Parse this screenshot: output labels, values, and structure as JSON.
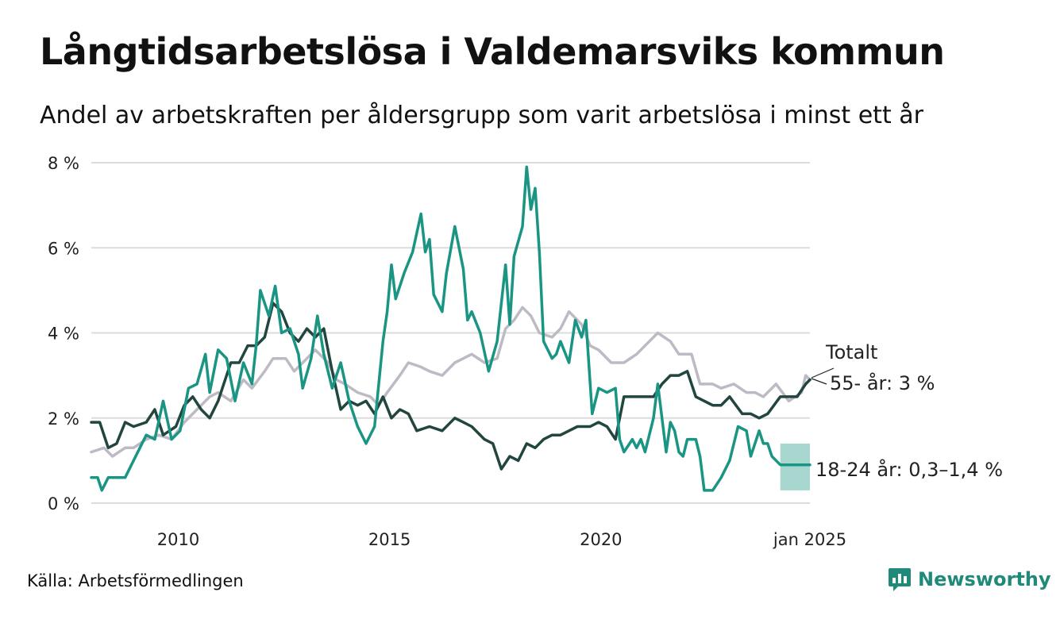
{
  "chart_data": {
    "type": "line",
    "title": "Långtidsarbetslösa i Valdemarsviks kommun",
    "subtitle": "Andel av arbetskraften per åldersgrupp som varit arbetslösa i minst ett år",
    "source": "Källa: Arbetsförmedlingen",
    "brand": "Newsworthy",
    "x_range": [
      2008.0,
      2025.0
    ],
    "ylim": [
      0,
      8
    ],
    "y_ticks": [
      {
        "value": 0,
        "label": "0 %"
      },
      {
        "value": 2,
        "label": "2 %"
      },
      {
        "value": 4,
        "label": "4 %"
      },
      {
        "value": 6,
        "label": "6 %"
      },
      {
        "value": 8,
        "label": "8 %"
      }
    ],
    "x_ticks": [
      {
        "value": 2010,
        "label": "2010"
      },
      {
        "value": 2015,
        "label": "2015"
      },
      {
        "value": 2020,
        "label": "2020"
      },
      {
        "value": 2025,
        "label": "jan 2025"
      }
    ],
    "grid": true,
    "series": [
      {
        "name": "Totalt",
        "color": "#bdbac6",
        "points": [
          [
            2008.0,
            1.2
          ],
          [
            2008.3,
            1.3
          ],
          [
            2008.5,
            1.1
          ],
          [
            2008.8,
            1.3
          ],
          [
            2009.0,
            1.3
          ],
          [
            2009.3,
            1.5
          ],
          [
            2009.6,
            1.6
          ],
          [
            2009.9,
            1.5
          ],
          [
            2010.2,
            1.9
          ],
          [
            2010.5,
            2.2
          ],
          [
            2010.8,
            2.5
          ],
          [
            2011.0,
            2.6
          ],
          [
            2011.3,
            2.4
          ],
          [
            2011.6,
            2.9
          ],
          [
            2011.8,
            2.7
          ],
          [
            2012.1,
            3.1
          ],
          [
            2012.3,
            3.4
          ],
          [
            2012.6,
            3.4
          ],
          [
            2012.8,
            3.1
          ],
          [
            2013.1,
            3.4
          ],
          [
            2013.3,
            3.6
          ],
          [
            2013.6,
            3.3
          ],
          [
            2013.8,
            2.9
          ],
          [
            2014.0,
            2.8
          ],
          [
            2014.3,
            2.6
          ],
          [
            2014.6,
            2.5
          ],
          [
            2014.8,
            2.3
          ],
          [
            2015.0,
            2.6
          ],
          [
            2015.3,
            3.0
          ],
          [
            2015.5,
            3.3
          ],
          [
            2015.8,
            3.2
          ],
          [
            2016.0,
            3.1
          ],
          [
            2016.3,
            3.0
          ],
          [
            2016.6,
            3.3
          ],
          [
            2016.8,
            3.4
          ],
          [
            2017.0,
            3.5
          ],
          [
            2017.3,
            3.3
          ],
          [
            2017.6,
            3.4
          ],
          [
            2017.8,
            4.1
          ],
          [
            2018.0,
            4.3
          ],
          [
            2018.2,
            4.6
          ],
          [
            2018.4,
            4.4
          ],
          [
            2018.6,
            4.0
          ],
          [
            2018.9,
            3.9
          ],
          [
            2019.1,
            4.1
          ],
          [
            2019.3,
            4.5
          ],
          [
            2019.6,
            4.2
          ],
          [
            2019.8,
            3.7
          ],
          [
            2020.0,
            3.6
          ],
          [
            2020.3,
            3.3
          ],
          [
            2020.6,
            3.3
          ],
          [
            2020.9,
            3.5
          ],
          [
            2021.2,
            3.8
          ],
          [
            2021.4,
            4.0
          ],
          [
            2021.7,
            3.8
          ],
          [
            2021.9,
            3.5
          ],
          [
            2022.2,
            3.5
          ],
          [
            2022.4,
            2.8
          ],
          [
            2022.7,
            2.8
          ],
          [
            2022.9,
            2.7
          ],
          [
            2023.2,
            2.8
          ],
          [
            2023.5,
            2.6
          ],
          [
            2023.7,
            2.6
          ],
          [
            2023.9,
            2.5
          ],
          [
            2024.2,
            2.8
          ],
          [
            2024.5,
            2.4
          ],
          [
            2024.8,
            2.6
          ],
          [
            2024.9,
            3.0
          ],
          [
            2025.0,
            2.9
          ]
        ]
      },
      {
        "name": "55- år",
        "color": "#22463f",
        "points": [
          [
            2008.0,
            1.9
          ],
          [
            2008.2,
            1.9
          ],
          [
            2008.4,
            1.3
          ],
          [
            2008.6,
            1.4
          ],
          [
            2008.8,
            1.9
          ],
          [
            2009.0,
            1.8
          ],
          [
            2009.3,
            1.9
          ],
          [
            2009.5,
            2.2
          ],
          [
            2009.7,
            1.6
          ],
          [
            2010.0,
            1.8
          ],
          [
            2010.2,
            2.3
          ],
          [
            2010.4,
            2.5
          ],
          [
            2010.6,
            2.2
          ],
          [
            2010.8,
            2.0
          ],
          [
            2011.0,
            2.4
          ],
          [
            2011.3,
            3.3
          ],
          [
            2011.5,
            3.3
          ],
          [
            2011.7,
            3.7
          ],
          [
            2011.9,
            3.7
          ],
          [
            2012.1,
            3.9
          ],
          [
            2012.3,
            4.7
          ],
          [
            2012.5,
            4.5
          ],
          [
            2012.7,
            4.0
          ],
          [
            2012.9,
            3.8
          ],
          [
            2013.1,
            4.1
          ],
          [
            2013.3,
            3.9
          ],
          [
            2013.5,
            4.1
          ],
          [
            2013.7,
            3.1
          ],
          [
            2013.9,
            2.2
          ],
          [
            2014.1,
            2.4
          ],
          [
            2014.3,
            2.3
          ],
          [
            2014.5,
            2.4
          ],
          [
            2014.7,
            2.1
          ],
          [
            2014.9,
            2.5
          ],
          [
            2015.1,
            2.0
          ],
          [
            2015.3,
            2.2
          ],
          [
            2015.5,
            2.1
          ],
          [
            2015.7,
            1.7
          ],
          [
            2016.0,
            1.8
          ],
          [
            2016.3,
            1.7
          ],
          [
            2016.6,
            2.0
          ],
          [
            2016.8,
            1.9
          ],
          [
            2017.0,
            1.8
          ],
          [
            2017.3,
            1.5
          ],
          [
            2017.5,
            1.4
          ],
          [
            2017.7,
            0.8
          ],
          [
            2017.9,
            1.1
          ],
          [
            2018.1,
            1.0
          ],
          [
            2018.3,
            1.4
          ],
          [
            2018.5,
            1.3
          ],
          [
            2018.7,
            1.5
          ],
          [
            2018.9,
            1.6
          ],
          [
            2019.1,
            1.6
          ],
          [
            2019.3,
            1.7
          ],
          [
            2019.5,
            1.8
          ],
          [
            2019.8,
            1.8
          ],
          [
            2020.0,
            1.9
          ],
          [
            2020.2,
            1.8
          ],
          [
            2020.4,
            1.5
          ],
          [
            2020.6,
            2.5
          ],
          [
            2020.8,
            2.5
          ],
          [
            2021.0,
            2.5
          ],
          [
            2021.3,
            2.5
          ],
          [
            2021.5,
            2.8
          ],
          [
            2021.7,
            3.0
          ],
          [
            2021.9,
            3.0
          ],
          [
            2022.1,
            3.1
          ],
          [
            2022.3,
            2.5
          ],
          [
            2022.5,
            2.4
          ],
          [
            2022.7,
            2.3
          ],
          [
            2022.9,
            2.3
          ],
          [
            2023.1,
            2.5
          ],
          [
            2023.4,
            2.1
          ],
          [
            2023.6,
            2.1
          ],
          [
            2023.8,
            2.0
          ],
          [
            2024.0,
            2.1
          ],
          [
            2024.3,
            2.5
          ],
          [
            2024.5,
            2.5
          ],
          [
            2024.7,
            2.5
          ],
          [
            2024.9,
            2.8
          ],
          [
            2025.0,
            2.9
          ]
        ]
      },
      {
        "name": "18-24 år",
        "color": "#1a9583",
        "points": [
          [
            2008.0,
            0.6
          ],
          [
            2008.15,
            0.6
          ],
          [
            2008.25,
            0.3
          ],
          [
            2008.4,
            0.6
          ],
          [
            2008.6,
            0.6
          ],
          [
            2008.8,
            0.6
          ],
          [
            2009.0,
            1.0
          ],
          [
            2009.3,
            1.6
          ],
          [
            2009.5,
            1.5
          ],
          [
            2009.7,
            2.4
          ],
          [
            2009.9,
            1.5
          ],
          [
            2010.1,
            1.7
          ],
          [
            2010.3,
            2.7
          ],
          [
            2010.5,
            2.8
          ],
          [
            2010.7,
            3.5
          ],
          [
            2010.8,
            2.6
          ],
          [
            2011.0,
            3.6
          ],
          [
            2011.2,
            3.4
          ],
          [
            2011.4,
            2.4
          ],
          [
            2011.6,
            3.3
          ],
          [
            2011.8,
            2.8
          ],
          [
            2011.9,
            3.7
          ],
          [
            2012.0,
            5.0
          ],
          [
            2012.2,
            4.4
          ],
          [
            2012.35,
            5.1
          ],
          [
            2012.5,
            4.0
          ],
          [
            2012.7,
            4.1
          ],
          [
            2012.9,
            3.5
          ],
          [
            2013.0,
            2.7
          ],
          [
            2013.2,
            3.4
          ],
          [
            2013.35,
            4.4
          ],
          [
            2013.5,
            3.5
          ],
          [
            2013.7,
            2.7
          ],
          [
            2013.9,
            3.3
          ],
          [
            2014.1,
            2.4
          ],
          [
            2014.3,
            1.8
          ],
          [
            2014.5,
            1.4
          ],
          [
            2014.7,
            1.8
          ],
          [
            2014.9,
            3.8
          ],
          [
            2015.0,
            4.5
          ],
          [
            2015.1,
            5.6
          ],
          [
            2015.2,
            4.8
          ],
          [
            2015.4,
            5.4
          ],
          [
            2015.6,
            5.9
          ],
          [
            2015.8,
            6.8
          ],
          [
            2015.9,
            5.9
          ],
          [
            2016.0,
            6.2
          ],
          [
            2016.1,
            4.9
          ],
          [
            2016.3,
            4.5
          ],
          [
            2016.4,
            5.4
          ],
          [
            2016.6,
            6.5
          ],
          [
            2016.8,
            5.5
          ],
          [
            2016.9,
            4.3
          ],
          [
            2017.0,
            4.5
          ],
          [
            2017.2,
            4.0
          ],
          [
            2017.4,
            3.1
          ],
          [
            2017.6,
            3.8
          ],
          [
            2017.8,
            5.6
          ],
          [
            2017.9,
            4.2
          ],
          [
            2018.0,
            5.8
          ],
          [
            2018.2,
            6.5
          ],
          [
            2018.3,
            7.9
          ],
          [
            2018.4,
            6.9
          ],
          [
            2018.5,
            7.4
          ],
          [
            2018.6,
            5.9
          ],
          [
            2018.7,
            3.8
          ],
          [
            2018.9,
            3.4
          ],
          [
            2019.0,
            3.5
          ],
          [
            2019.1,
            3.8
          ],
          [
            2019.3,
            3.3
          ],
          [
            2019.45,
            4.3
          ],
          [
            2019.6,
            3.9
          ],
          [
            2019.7,
            4.3
          ],
          [
            2019.85,
            2.1
          ],
          [
            2020.0,
            2.7
          ],
          [
            2020.2,
            2.6
          ],
          [
            2020.4,
            2.7
          ],
          [
            2020.5,
            1.5
          ],
          [
            2020.6,
            1.2
          ],
          [
            2020.8,
            1.5
          ],
          [
            2020.9,
            1.3
          ],
          [
            2021.0,
            1.5
          ],
          [
            2021.1,
            1.2
          ],
          [
            2021.3,
            2.0
          ],
          [
            2021.4,
            2.8
          ],
          [
            2021.5,
            2.0
          ],
          [
            2021.6,
            1.2
          ],
          [
            2021.7,
            1.9
          ],
          [
            2021.8,
            1.7
          ],
          [
            2021.9,
            1.2
          ],
          [
            2022.0,
            1.1
          ],
          [
            2022.1,
            1.5
          ],
          [
            2022.3,
            1.5
          ],
          [
            2022.4,
            1.1
          ],
          [
            2022.5,
            0.3
          ],
          [
            2022.7,
            0.3
          ],
          [
            2022.9,
            0.6
          ],
          [
            2023.1,
            1.0
          ],
          [
            2023.3,
            1.8
          ],
          [
            2023.5,
            1.7
          ],
          [
            2023.6,
            1.1
          ],
          [
            2023.8,
            1.7
          ],
          [
            2023.9,
            1.4
          ],
          [
            2024.0,
            1.4
          ],
          [
            2024.1,
            1.1
          ],
          [
            2024.3,
            0.9
          ],
          [
            2024.6,
            0.9
          ],
          [
            2025.0,
            0.9
          ]
        ],
        "interval": {
          "x_start": 2024.3,
          "x_end": 2025.0,
          "low": 0.3,
          "high": 1.4
        }
      }
    ],
    "annotations": [
      {
        "series": "Totalt",
        "text": "Totalt"
      },
      {
        "series": "55- år",
        "text": "55- år:  3 %"
      },
      {
        "series": "18-24 år",
        "text": "18-24 år: 0,3–1,4 %"
      }
    ]
  }
}
